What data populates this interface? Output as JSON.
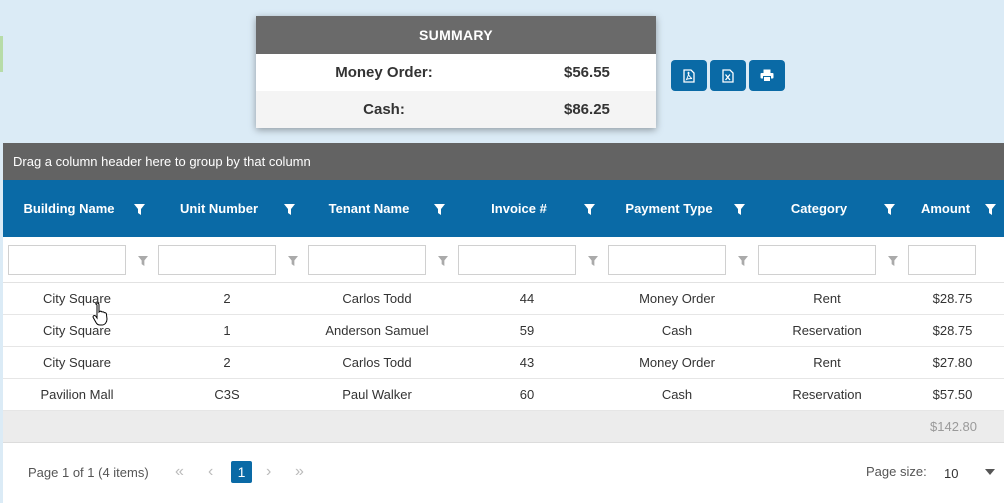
{
  "summary": {
    "title": "SUMMARY",
    "rows": [
      {
        "label": "Money Order:",
        "value": "$56.55"
      },
      {
        "label": "Cash:",
        "value": "$86.25"
      }
    ]
  },
  "export": {
    "pdf_icon": "pdf-file-icon",
    "excel_icon": "excel-file-icon",
    "print_icon": "print-icon"
  },
  "group_panel": {
    "text": "Drag a column header here to group by that column"
  },
  "grid": {
    "columns": [
      "Building Name",
      "Unit Number",
      "Tenant Name",
      "Invoice #",
      "Payment Type",
      "Category",
      "Amount"
    ],
    "rows": [
      [
        "City Square",
        "2",
        "Carlos Todd",
        "44",
        "Money Order",
        "Rent",
        "$28.75"
      ],
      [
        "City Square",
        "1",
        "Anderson Samuel",
        "59",
        "Cash",
        "Reservation",
        "$28.75"
      ],
      [
        "City Square",
        "2",
        "Carlos Todd",
        "43",
        "Money Order",
        "Rent",
        "$27.80"
      ],
      [
        "Pavilion Mall",
        "C3S",
        "Paul Walker",
        "60",
        "Cash",
        "Reservation",
        "$57.50"
      ]
    ],
    "total": "$142.80"
  },
  "pager": {
    "info": "Page 1 of 1 (4 items)",
    "current_page": "1",
    "first": "«",
    "prev": "‹",
    "next": "›",
    "last": "»",
    "page_size_label": "Page size:",
    "page_size_value": "10"
  },
  "colors": {
    "background": "#dbebf6",
    "header_blue": "#0a6aa6",
    "group_panel": "#636363",
    "summary_header": "#6a6a6a"
  }
}
